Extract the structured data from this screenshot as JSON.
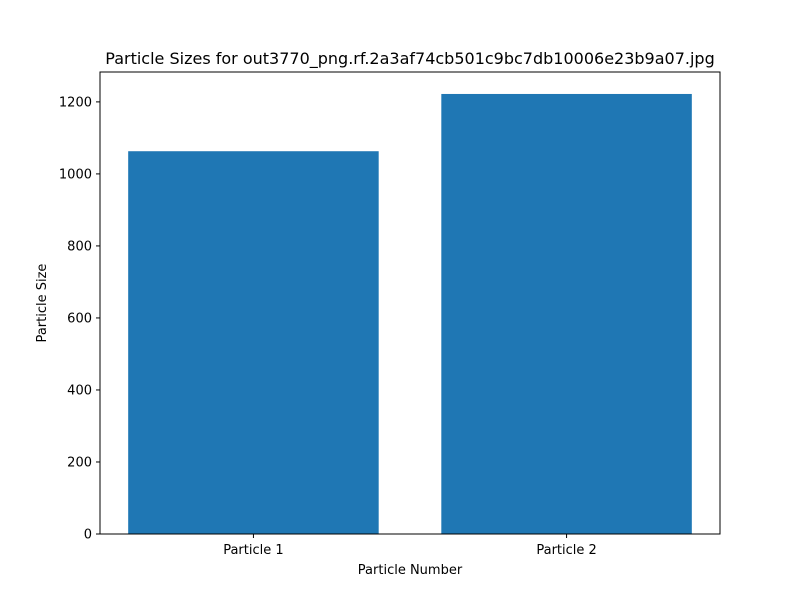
{
  "chart_data": {
    "type": "bar",
    "title": "Particle Sizes for out3770_png.rf.2a3af74cb501c9bc7db10006e23b9a07.jpg",
    "xlabel": "Particle Number",
    "ylabel": "Particle Size",
    "categories": [
      "Particle 1",
      "Particle 2"
    ],
    "values": [
      1063,
      1222
    ],
    "ylim": [
      0,
      1283
    ],
    "yticks": [
      0,
      200,
      400,
      600,
      800,
      1000,
      1200
    ],
    "bar_color": "#1f77b4",
    "grid": false,
    "legend": "none"
  }
}
